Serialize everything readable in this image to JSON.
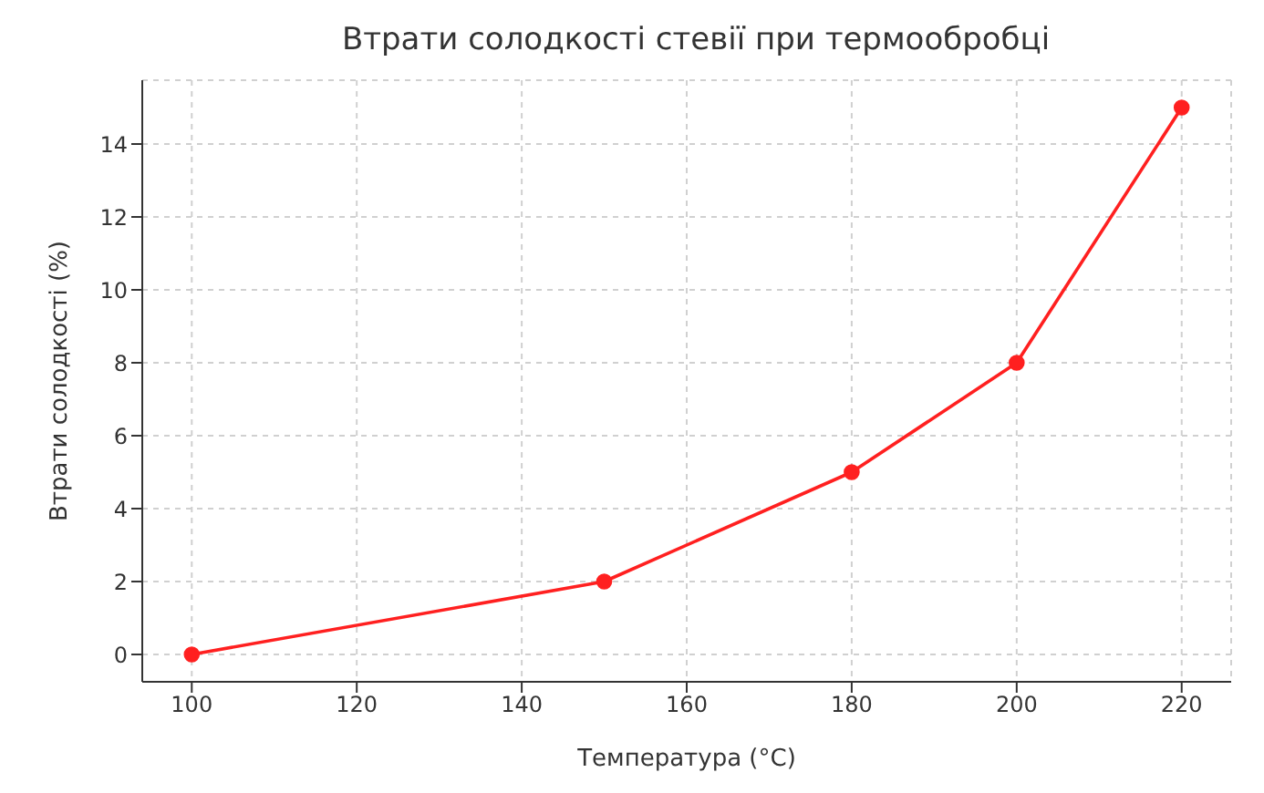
{
  "chart_data": {
    "type": "line",
    "title": "Втрати солодкості стевії при термообробці",
    "xlabel": "Температура (°C)",
    "ylabel": "Втрати солодкості (%)",
    "x": [
      100,
      150,
      180,
      200,
      220
    ],
    "series": [
      {
        "color": "#ff2020",
        "values": [
          0,
          2,
          5,
          8,
          15
        ]
      }
    ],
    "xlim": [
      94,
      226
    ],
    "xticks": [
      100,
      120,
      140,
      160,
      180,
      200,
      220
    ],
    "ylim": [
      -0.75,
      15.75
    ],
    "yticks": [
      0,
      2,
      4,
      6,
      8,
      10,
      12,
      14
    ],
    "grid": true,
    "marker": "circle",
    "line_style": "solid"
  }
}
